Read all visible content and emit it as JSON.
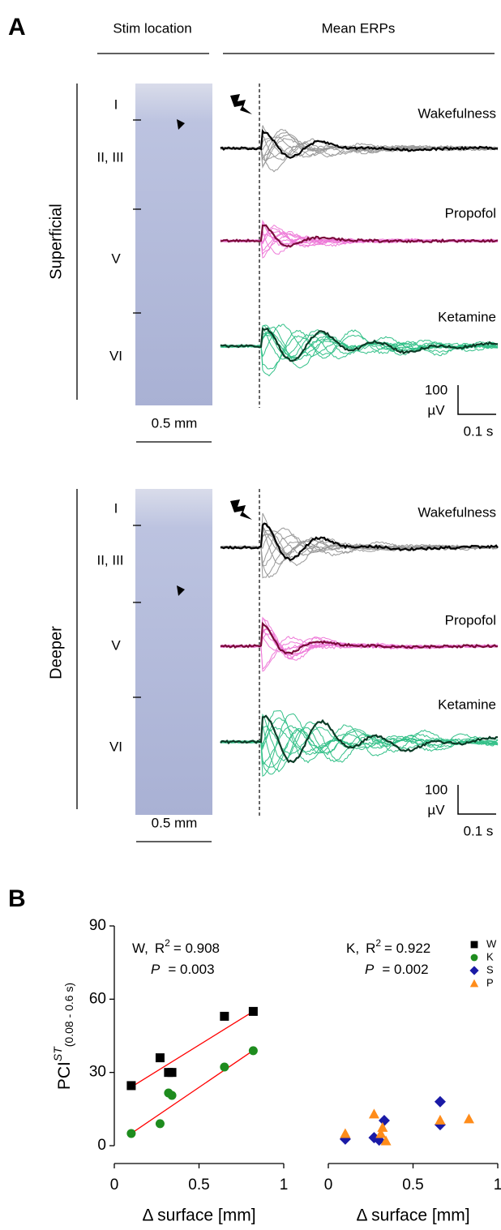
{
  "panel_a": {
    "label": "A",
    "col_stim": "Stim location",
    "col_erp": "Mean ERPs",
    "sections": [
      {
        "name": "Superficial",
        "layers": [
          "I",
          "II, III",
          "V",
          "VI"
        ],
        "conditions": [
          "Wakefulness",
          "Propofol",
          "Ketamine"
        ],
        "scale_v": "100",
        "scale_unit": "µV",
        "scale_t": "0.1 s",
        "scale_mm": "0.5 mm"
      },
      {
        "name": "Deeper",
        "layers": [
          "I",
          "II, III",
          "V",
          "VI"
        ],
        "conditions": [
          "Wakefulness",
          "Propofol",
          "Ketamine"
        ],
        "scale_v": "100",
        "scale_unit": "µV",
        "scale_t": "0.1 s",
        "scale_mm": "0.5 mm"
      }
    ]
  },
  "panel_b_label": "B",
  "chart_data": [
    {
      "type": "scatter",
      "xlabel": "Δ surface [mm]",
      "ylabel": {
        "text": "PCI",
        "sup": "ST",
        "sub": "(0.08 - 0.6 s)"
      },
      "xlim": [
        0,
        1
      ],
      "xticks": [
        0,
        0.5,
        1
      ],
      "ylim": [
        0,
        90
      ],
      "yticks": [
        0,
        30,
        60,
        90
      ],
      "stats": [
        {
          "label": "W,",
          "r": "R",
          "sup": "2",
          "r2": "= 0.908",
          "p": "P",
          "pval": "= 0.003"
        }
      ],
      "series": [
        {
          "name": "W",
          "marker": "square",
          "color": "#000000",
          "x": [
            0.1,
            0.27,
            0.32,
            0.34,
            0.65,
            0.82
          ],
          "values": [
            24.6,
            36,
            30,
            30,
            53,
            55
          ],
          "fit": {
            "color": "#ff0000",
            "x": [
              0.1,
              0.82
            ],
            "values": [
              24,
              55
            ]
          }
        },
        {
          "name": "K",
          "marker": "circle",
          "color": "#1e8c1e",
          "x": [
            0.1,
            0.27,
            0.32,
            0.34,
            0.65,
            0.82
          ],
          "values": [
            5,
            9,
            21.6,
            20.6,
            32.2,
            38.9
          ],
          "fit": {
            "color": "#ff0000",
            "x": [
              0.1,
              0.82
            ],
            "values": [
              5,
              39
            ]
          }
        }
      ]
    },
    {
      "type": "scatter",
      "xlabel": "Δ surface [mm]",
      "xlim": [
        0,
        1
      ],
      "xticks": [
        0,
        0.5,
        1
      ],
      "ylim": [
        0,
        90
      ],
      "stats": [
        {
          "label": "K,",
          "r": "R",
          "sup": "2",
          "r2": "= 0.922",
          "p": "P",
          "pval": "= 0.002"
        }
      ],
      "series": [
        {
          "name": "S",
          "marker": "diamond",
          "color": "#1a1aa6",
          "x": [
            0.1,
            0.27,
            0.3,
            0.33,
            0.66,
            0.66
          ],
          "values": [
            2.7,
            3.3,
            2.3,
            10.3,
            8.6,
            18
          ]
        },
        {
          "name": "P",
          "marker": "triangle",
          "color": "#ff8c1a",
          "x": [
            0.1,
            0.27,
            0.32,
            0.31,
            0.34,
            0.66,
            0.83
          ],
          "values": [
            5,
            13,
            7.5,
            5,
            2,
            10.5,
            11
          ]
        }
      ]
    }
  ]
}
